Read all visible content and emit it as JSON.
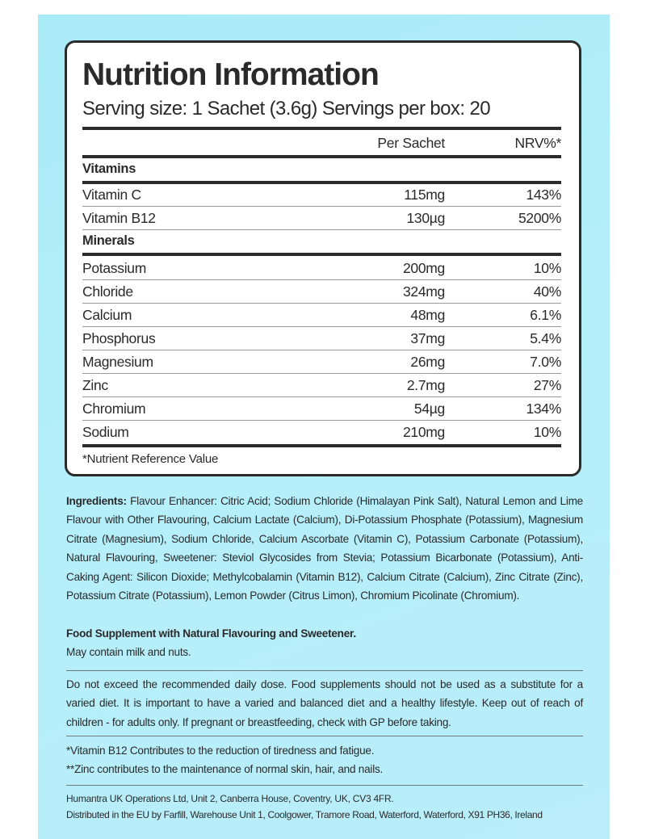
{
  "panel": {
    "title": "Nutrition Information",
    "serving": "Serving size: 1 Sachet (3.6g)  Servings per box: 20",
    "col_per": "Per Sachet",
    "col_nrv": "NRV%*",
    "vitamins_label": "Vitamins",
    "vitamins": [
      {
        "name": "Vitamin C",
        "amount": "115mg",
        "nrv": "143%"
      },
      {
        "name": "Vitamin B12",
        "amount": "130µg",
        "nrv": "5200%"
      }
    ],
    "minerals_label": "Minerals",
    "minerals": [
      {
        "name": "Potassium",
        "amount": "200mg",
        "nrv": "10%"
      },
      {
        "name": "Chloride",
        "amount": "324mg",
        "nrv": "40%"
      },
      {
        "name": "Calcium",
        "amount": "48mg",
        "nrv": "6.1%"
      },
      {
        "name": "Phosphorus",
        "amount": "37mg",
        "nrv": "5.4%"
      },
      {
        "name": "Magnesium",
        "amount": "26mg",
        "nrv": "7.0%"
      },
      {
        "name": "Zinc",
        "amount": "2.7mg",
        "nrv": "27%"
      },
      {
        "name": "Chromium",
        "amount": "54µg",
        "nrv": "134%"
      },
      {
        "name": "Sodium",
        "amount": "210mg",
        "nrv": "10%"
      }
    ],
    "nrv_note": "*Nutrient Reference Value"
  },
  "ingredients": {
    "label": "Ingredients:",
    "text": " Flavour Enhancer: Citric Acid; Sodium Chloride (Himalayan Pink Salt), Natural Lemon and Lime Flavour with Other Flavouring, Calcium Lactate (Calcium), Di-Potassium Phosphate (Potassium), Magnesium Citrate (Magnesium), Sodium Chloride, Calcium Ascorbate (Vitamin C), Potassium Carbonate (Potassium), Natural Flavouring, Sweetener: Steviol Glycosides from Stevia; Potassium Bicarbonate (Potassium), Anti-Caking Agent: Silicon Dioxide; Methylcobalamin (Vitamin B12), Calcium Citrate (Calcium), Zinc Citrate (Zinc), Potassium Citrate (Potassium), Lemon Powder (Citrus Limon), Chromium Picolinate (Chromium)."
  },
  "supplement_statement": "Food Supplement with Natural Flavouring and Sweetener.",
  "allergens": "May contain milk and nuts.",
  "warning": "Do not exceed the recommended daily dose. Food supplements should not be used as a substitute for a varied diet. It is important to have a varied and balanced diet and a healthy lifestyle. Keep out of reach of children - for adults only. If pregnant or breastfeeding, check with GP before taking.",
  "claims": [
    "*Vitamin B12 Contributes to the reduction of tiredness and fatigue.",
    "**Zinc contributes to the maintenance of normal skin, hair, and nails."
  ],
  "company": [
    "Humantra UK Operations Ltd, Unit 2, Canberra House, Coventry, UK, CV3 4FR.",
    "Distributed in the EU by Farfill, Warehouse Unit 1, Coolgower, Tramore Road, Waterford, Waterford, X91 PH36, Ireland"
  ],
  "colors": {
    "background": "#b3eefa",
    "ink": "#2b2b2b"
  }
}
